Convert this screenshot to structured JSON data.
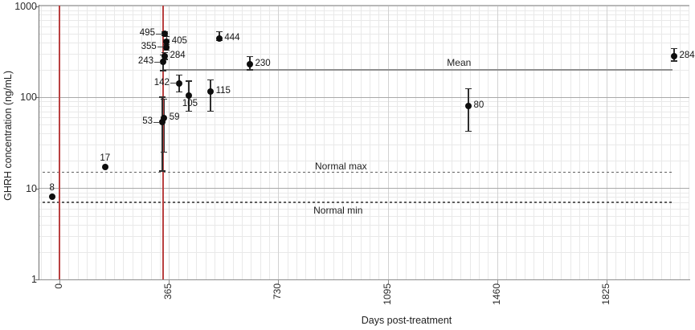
{
  "figure": {
    "colors": {
      "background": "#ffffff",
      "point": "#0d0d0d",
      "error_bar": "#2e2e2e",
      "event_line_red": "#b94040",
      "mean_line": "#8f8f8f",
      "dashed_reference": "#5f5f5f",
      "grid_minor": "#e9e9e9",
      "grid_major_vertical": "#d2d2d2",
      "grid_major_horizontal": "#a9a9a9",
      "axis_line": "#8e8e8e",
      "text": "#1f1f1f"
    }
  },
  "chart_data": {
    "type": "scatter",
    "title": "",
    "xlabel": "Days post-treatment",
    "ylabel": "GHRH concentration (ng/mL)",
    "x_ticks": [
      0,
      365,
      730,
      1095,
      1460,
      1825
    ],
    "x_tick_labels": [
      "0",
      "365",
      "730",
      "1095",
      "1460",
      "1825"
    ],
    "y_scale": "log",
    "y_ticks": [
      1,
      10,
      100,
      1000
    ],
    "y_tick_labels": [
      "1",
      "10",
      "100",
      "1000"
    ],
    "ylim": [
      1,
      1000
    ],
    "xlim_days": [
      -67,
      2105
    ],
    "grid": "on",
    "minor_x_step_days": 30.4167,
    "points": [
      {
        "day": -25,
        "value": 8,
        "label": "8",
        "label_pos": "above",
        "err_lo": null,
        "err_hi": null
      },
      {
        "day": 152,
        "value": 17,
        "label": "17",
        "label_pos": "above",
        "err_lo": null,
        "err_hi": null
      },
      {
        "day": 343,
        "value": 53,
        "label": "53",
        "label_pos": "left",
        "err_lo": 15.5,
        "err_hi": 100
      },
      {
        "day": 349,
        "value": 59,
        "label": "59",
        "label_pos": "right",
        "err_lo": 25,
        "err_hi": 95
      },
      {
        "day": 346,
        "value": 243,
        "label": "243",
        "label_pos": "left",
        "err_lo": 195,
        "err_hi": 290
      },
      {
        "day": 351,
        "value": 284,
        "label": "284",
        "label_pos": "right",
        "err_lo": 260,
        "err_hi": 310
      },
      {
        "day": 356,
        "value": 355,
        "label": "355",
        "label_pos": "left",
        "err_lo": 330,
        "err_hi": 425
      },
      {
        "day": 357,
        "value": 405,
        "label": "405",
        "label_pos": "right",
        "err_lo": 380,
        "err_hi": 460
      },
      {
        "day": 351,
        "value": 495,
        "label": "495",
        "label_pos": "left",
        "err_lo": 470,
        "err_hi": 520
      },
      {
        "day": 399,
        "value": 142,
        "label": "142",
        "label_pos": "left",
        "err_lo": 115,
        "err_hi": 175
      },
      {
        "day": 431,
        "value": 105,
        "label": "105",
        "label_pos": "below",
        "err_lo": 70,
        "err_hi": 150
      },
      {
        "day": 504,
        "value": 115,
        "label": "115",
        "label_pos": "right",
        "err_lo": 70,
        "err_hi": 155
      },
      {
        "day": 533,
        "value": 444,
        "label": "444",
        "label_pos": "right",
        "err_lo": 420,
        "err_hi": 520
      },
      {
        "day": 635,
        "value": 230,
        "label": "230",
        "label_pos": "right",
        "err_lo": 200,
        "err_hi": 280
      },
      {
        "day": 1364,
        "value": 80,
        "label": "80",
        "label_pos": "right",
        "err_lo": 42,
        "err_hi": 124
      },
      {
        "day": 2050,
        "value": 284,
        "label": "284",
        "label_pos": "right",
        "err_lo": 250,
        "err_hi": 340
      }
    ],
    "reference_lines": {
      "mean": {
        "label": "Mean",
        "value": 200,
        "style": "solid",
        "day_start": 346,
        "day_end": 2046,
        "label_day": 1330
      },
      "normal_max": {
        "label": "Normal max",
        "value": 15,
        "style": "dashed",
        "day_start": -60,
        "day_end": 2046,
        "label_day": 946
      },
      "normal_min": {
        "label": "Normal min",
        "value": 7,
        "style": "dashed",
        "day_start": -60,
        "day_end": 2046,
        "label_day": 941
      }
    },
    "event_lines": [
      {
        "name": "treatment-day-0",
        "day": 0
      },
      {
        "name": "treatment-day-345",
        "day": 345
      }
    ]
  }
}
